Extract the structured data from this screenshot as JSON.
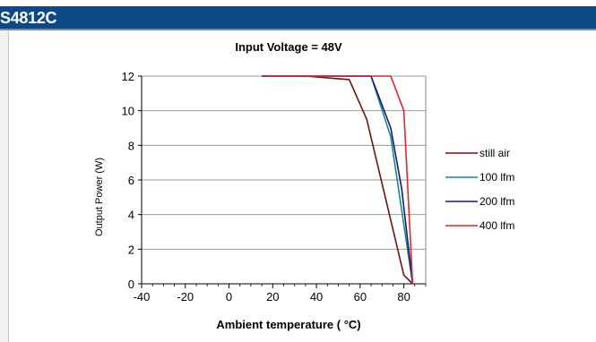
{
  "header": {
    "title": "S4812C"
  },
  "colors": {
    "header_bg": "#0b4a86",
    "still_air": "#6b1414",
    "lfm100": "#168a8a",
    "lfm200": "#1a1a6e",
    "lfm400": "#e0262f"
  },
  "chart_data": {
    "type": "line",
    "title": "Input Voltage = 48V",
    "xlabel": "Ambient temperature ( °C)",
    "ylabel": "Output Power (W)",
    "xlim": [
      -40,
      90
    ],
    "ylim": [
      0,
      12
    ],
    "x_ticks": [
      "-40",
      "-20",
      "0",
      "20",
      "40",
      "60",
      "80"
    ],
    "y_ticks": [
      "0",
      "2",
      "4",
      "6",
      "8",
      "10",
      "12"
    ],
    "grid": "horizontal",
    "legend_position": "right",
    "series": [
      {
        "name": "still air",
        "color": "#6b1414",
        "x": [
          15,
          35,
          55,
          63,
          80,
          84
        ],
        "y": [
          12,
          12,
          11.8,
          9.5,
          0.5,
          0
        ]
      },
      {
        "name": "100 lfm",
        "color": "#168a8a",
        "x": [
          15,
          65,
          74,
          84
        ],
        "y": [
          12,
          12,
          8.5,
          0
        ]
      },
      {
        "name": "200 lfm",
        "color": "#1a1a6e",
        "x": [
          15,
          65,
          74,
          79,
          84
        ],
        "y": [
          12,
          12,
          9,
          5.5,
          0
        ]
      },
      {
        "name": "400 lfm",
        "color": "#e0262f",
        "x": [
          15,
          74,
          80,
          84
        ],
        "y": [
          12,
          12,
          10,
          0
        ]
      }
    ]
  }
}
